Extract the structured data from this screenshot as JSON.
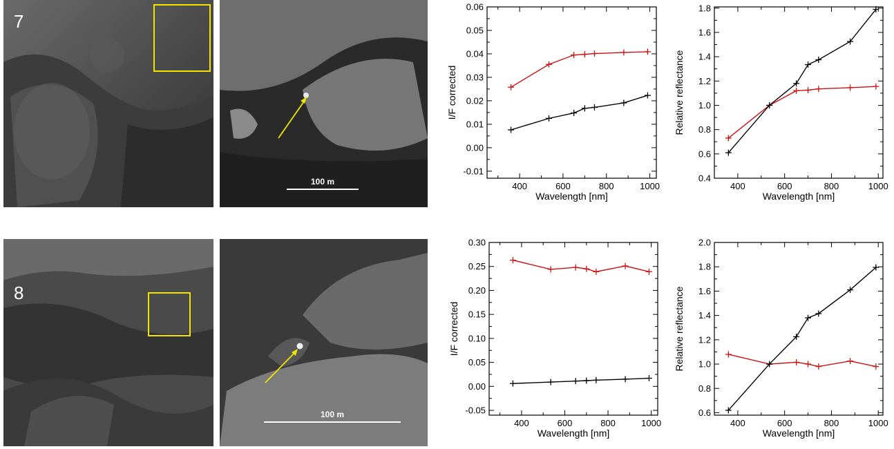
{
  "rows": [
    {
      "label": "7",
      "zoom_scale_label": "100 m",
      "chart_data": [
        {
          "type": "line",
          "xlabel": "Wavelength [nm]",
          "ylabel": "I/F corrected",
          "xlim": [
            250,
            1030
          ],
          "ylim": [
            -0.013,
            0.06
          ],
          "xticks": [
            400,
            600,
            800,
            1000
          ],
          "yticks": [
            -0.01,
            0.0,
            0.01,
            0.02,
            0.03,
            0.04,
            0.05,
            0.06
          ],
          "yticklabels": [
            "-0.01",
            "0.00",
            "0.01",
            "0.02",
            "0.03",
            "0.04",
            "0.05",
            "0.06"
          ],
          "series": [
            {
              "color": "#cc1111",
              "x": [
                360,
                535,
                650,
                700,
                745,
                880,
                990
              ],
              "y": [
                0.0258,
                0.0355,
                0.0395,
                0.0398,
                0.0401,
                0.0406,
                0.0409
              ]
            },
            {
              "color": "#000000",
              "x": [
                360,
                535,
                650,
                700,
                745,
                880,
                990
              ],
              "y": [
                0.0076,
                0.0125,
                0.0148,
                0.0168,
                0.0172,
                0.0191,
                0.0223
              ]
            }
          ]
        },
        {
          "type": "line",
          "xlabel": "Wavelength [nm]",
          "ylabel": "Relative reflectance",
          "xlim": [
            300,
            1020
          ],
          "ylim": [
            0.4,
            1.81
          ],
          "xticks": [
            400,
            600,
            800,
            1000
          ],
          "yticks": [
            0.4,
            0.6,
            0.8,
            1.0,
            1.2,
            1.4,
            1.6,
            1.8
          ],
          "yticklabels": [
            "0.4",
            "0.6",
            "0.8",
            "1.0",
            "1.2",
            "1.4",
            "1.6",
            "1.8"
          ],
          "series": [
            {
              "color": "#cc1111",
              "x": [
                360,
                535,
                650,
                700,
                745,
                880,
                990
              ],
              "y": [
                0.73,
                1.0,
                1.12,
                1.125,
                1.135,
                1.145,
                1.155
              ]
            },
            {
              "color": "#000000",
              "x": [
                360,
                535,
                650,
                700,
                745,
                880,
                990
              ],
              "y": [
                0.61,
                1.0,
                1.18,
                1.335,
                1.375,
                1.525,
                1.79
              ]
            }
          ]
        }
      ]
    },
    {
      "label": "8",
      "zoom_scale_label": "100 m",
      "chart_data": [
        {
          "type": "line",
          "xlabel": "Wavelength [nm]",
          "ylabel": "I/F corrected",
          "xlim": [
            250,
            1030
          ],
          "ylim": [
            -0.06,
            0.3
          ],
          "xticks": [
            400,
            600,
            800,
            1000
          ],
          "yticks": [
            -0.05,
            0.0,
            0.05,
            0.1,
            0.15,
            0.2,
            0.25,
            0.3
          ],
          "yticklabels": [
            "-0.05",
            "0.00",
            "0.05",
            "0.10",
            "0.15",
            "0.20",
            "0.25",
            "0.30"
          ],
          "series": [
            {
              "color": "#cc1111",
              "x": [
                360,
                535,
                650,
                700,
                745,
                880,
                990
              ],
              "y": [
                0.263,
                0.244,
                0.248,
                0.245,
                0.239,
                0.251,
                0.239
              ]
            },
            {
              "color": "#000000",
              "x": [
                360,
                535,
                650,
                700,
                745,
                880,
                990
              ],
              "y": [
                0.006,
                0.009,
                0.011,
                0.012,
                0.013,
                0.015,
                0.017
              ]
            }
          ]
        },
        {
          "type": "line",
          "xlabel": "Wavelength [nm]",
          "ylabel": "Relative reflectance",
          "xlim": [
            300,
            1020
          ],
          "ylim": [
            0.58,
            2.0
          ],
          "xticks": [
            400,
            600,
            800,
            1000
          ],
          "yticks": [
            0.6,
            0.8,
            1.0,
            1.2,
            1.4,
            1.6,
            1.8,
            2.0
          ],
          "yticklabels": [
            "0.6",
            "0.8",
            "1.0",
            "1.2",
            "1.4",
            "1.6",
            "1.8",
            "2.0"
          ],
          "series": [
            {
              "color": "#cc1111",
              "x": [
                360,
                535,
                650,
                700,
                745,
                880,
                990
              ],
              "y": [
                1.08,
                1.0,
                1.015,
                1.0,
                0.98,
                1.025,
                0.98
              ]
            },
            {
              "color": "#000000",
              "x": [
                360,
                535,
                650,
                700,
                745,
                880,
                990
              ],
              "y": [
                0.62,
                1.0,
                1.225,
                1.38,
                1.415,
                1.61,
                1.795
              ]
            }
          ]
        }
      ]
    }
  ],
  "colors": {
    "highlight_box": "#f2e600",
    "arrow": "#f2e600",
    "red_series": "#cc1111",
    "black_series": "#000000"
  }
}
